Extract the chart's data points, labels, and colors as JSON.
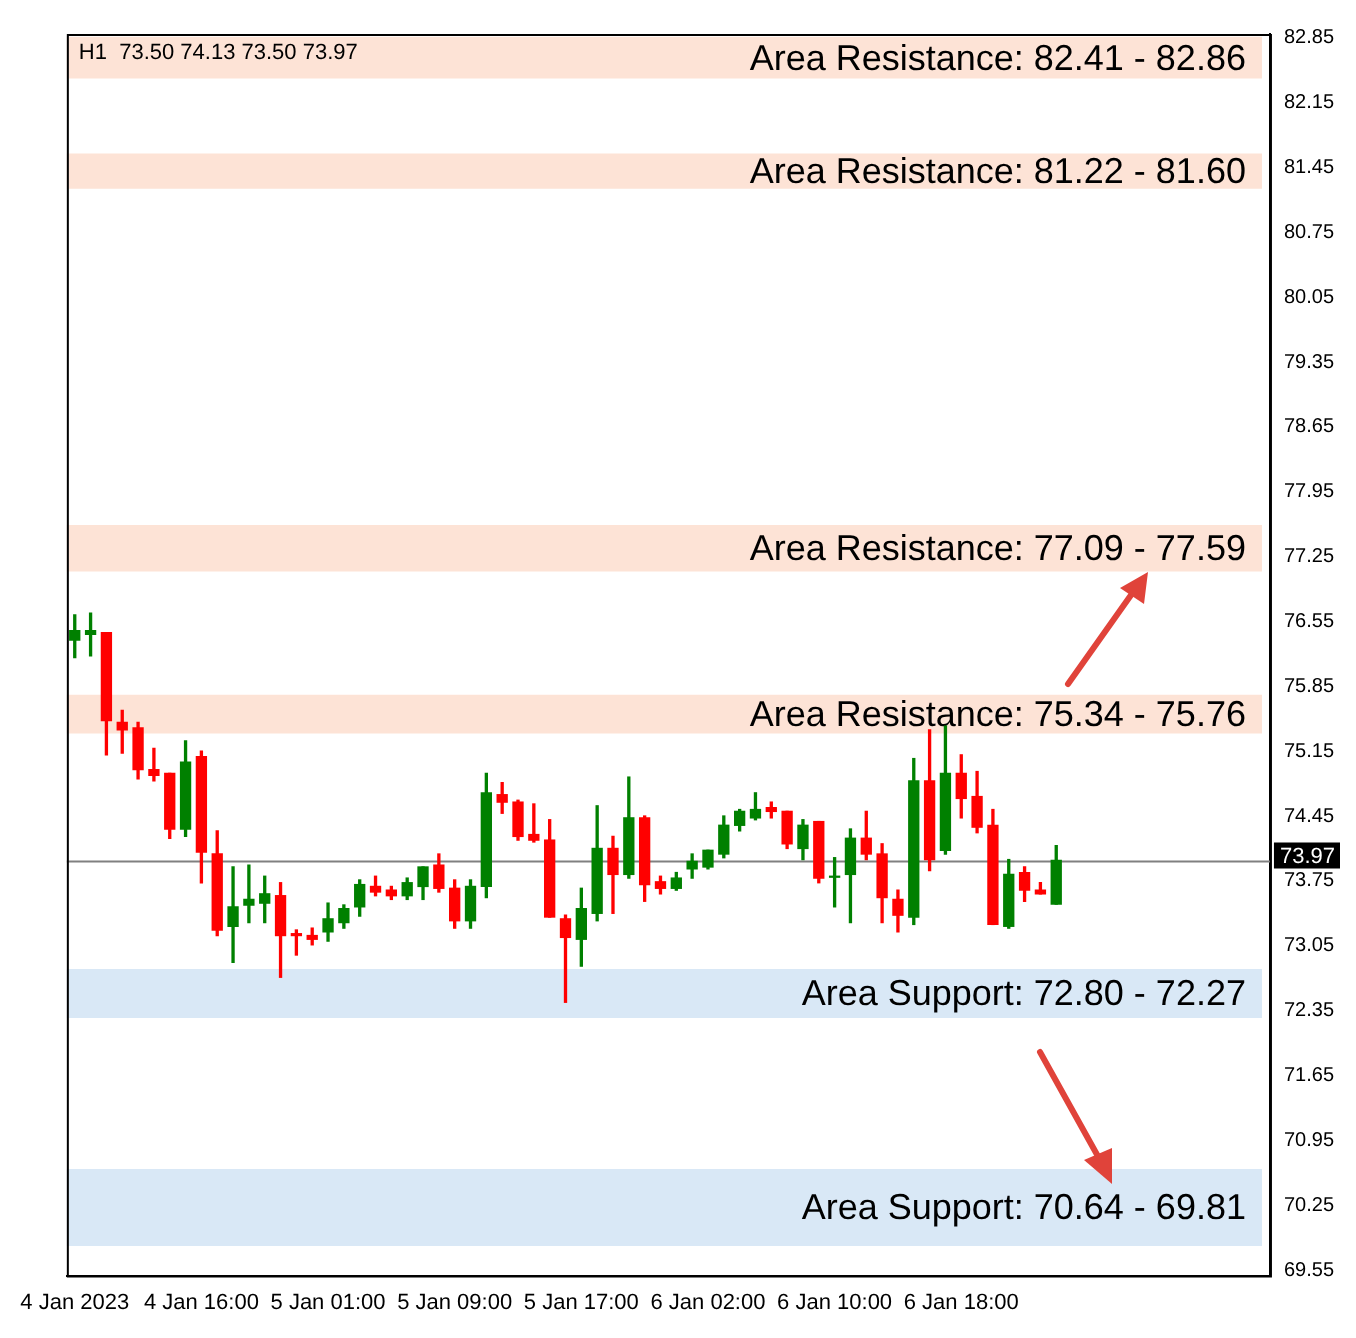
{
  "chart_data": {
    "type": "candlestick",
    "title": "H1  73.50 74.13 73.50 73.97",
    "categories": [
      "4 Jan 2023",
      null,
      null,
      null,
      null,
      null,
      null,
      null,
      "4 Jan 16:00",
      null,
      null,
      null,
      null,
      null,
      null,
      null,
      "5 Jan 01:00",
      null,
      null,
      null,
      null,
      null,
      null,
      null,
      "5 Jan 09:00",
      null,
      null,
      null,
      null,
      null,
      null,
      null,
      "5 Jan 17:00",
      null,
      null,
      null,
      null,
      null,
      null,
      null,
      "6 Jan 02:00",
      null,
      null,
      null,
      null,
      null,
      null,
      null,
      "6 Jan 10:00",
      null,
      null,
      null,
      null,
      null,
      null,
      null,
      "6 Jan 18:00",
      null,
      null,
      null,
      null,
      null,
      null,
      null,
      null,
      null,
      null,
      null,
      null,
      null,
      null,
      null,
      null,
      null,
      null,
      null
    ],
    "ohlc": [
      [
        76.35,
        76.62,
        76.16,
        76.45
      ],
      [
        76.41,
        76.64,
        76.18,
        76.45
      ],
      [
        76.43,
        76.43,
        75.11,
        75.48
      ],
      [
        75.46,
        75.59,
        75.13,
        75.38
      ],
      [
        75.4,
        75.46,
        74.85,
        74.95
      ],
      [
        74.95,
        75.18,
        74.83,
        74.89
      ],
      [
        74.91,
        74.91,
        74.21,
        74.31
      ],
      [
        74.31,
        75.26,
        74.23,
        75.03
      ],
      [
        75.09,
        75.15,
        73.73,
        74.06
      ],
      [
        74.04,
        74.29,
        73.16,
        73.22
      ],
      [
        73.26,
        73.9,
        72.87,
        73.47
      ],
      [
        73.49,
        73.92,
        73.3,
        73.55
      ],
      [
        73.51,
        73.8,
        73.3,
        73.61
      ],
      [
        73.59,
        73.73,
        72.71,
        73.16
      ],
      [
        73.18,
        73.22,
        72.95,
        73.16
      ],
      [
        73.16,
        73.24,
        73.06,
        73.12
      ],
      [
        73.2,
        73.51,
        73.1,
        73.34
      ],
      [
        73.3,
        73.49,
        73.24,
        73.45
      ],
      [
        73.47,
        73.76,
        73.37,
        73.71
      ],
      [
        73.69,
        73.8,
        73.59,
        73.63
      ],
      [
        73.65,
        73.69,
        73.55,
        73.59
      ],
      [
        73.59,
        73.78,
        73.55,
        73.73
      ],
      [
        73.69,
        73.9,
        73.55,
        73.9
      ],
      [
        73.92,
        74.04,
        73.63,
        73.67
      ],
      [
        73.67,
        73.76,
        73.24,
        73.32
      ],
      [
        73.32,
        73.76,
        73.24,
        73.69
      ],
      [
        73.69,
        74.91,
        73.57,
        74.7
      ],
      [
        74.68,
        74.81,
        74.48,
        74.6
      ],
      [
        74.6,
        74.62,
        74.19,
        74.23
      ],
      [
        74.25,
        74.58,
        74.17,
        74.19
      ],
      [
        74.19,
        74.41,
        73.36,
        73.36
      ],
      [
        73.34,
        73.38,
        72.44,
        73.14
      ],
      [
        73.12,
        73.67,
        72.83,
        73.45
      ],
      [
        73.4,
        74.56,
        73.32,
        74.1
      ],
      [
        74.1,
        74.23,
        73.4,
        73.82
      ],
      [
        73.82,
        74.87,
        73.78,
        74.43
      ],
      [
        74.43,
        74.45,
        73.53,
        73.71
      ],
      [
        73.74,
        73.8,
        73.61,
        73.67
      ],
      [
        73.67,
        73.84,
        73.65,
        73.78
      ],
      [
        73.88,
        74.04,
        73.78,
        73.96
      ],
      [
        73.9,
        74.08,
        73.88,
        74.08
      ],
      [
        74.04,
        74.45,
        74.0,
        74.35
      ],
      [
        74.35,
        74.52,
        74.29,
        74.5
      ],
      [
        74.43,
        74.7,
        74.41,
        74.52
      ],
      [
        74.54,
        74.6,
        74.43,
        74.5
      ],
      [
        74.5,
        74.5,
        74.1,
        74.15
      ],
      [
        74.1,
        74.41,
        73.98,
        74.35
      ],
      [
        74.39,
        74.39,
        73.73,
        73.78
      ],
      [
        73.79,
        74.0,
        73.47,
        73.8
      ],
      [
        73.82,
        74.31,
        73.3,
        74.21
      ],
      [
        74.21,
        74.5,
        73.98,
        74.04
      ],
      [
        74.04,
        74.15,
        73.3,
        73.57
      ],
      [
        73.55,
        73.65,
        73.2,
        73.38
      ],
      [
        73.36,
        75.07,
        73.28,
        74.83
      ],
      [
        74.83,
        75.38,
        73.86,
        73.98
      ],
      [
        74.08,
        75.42,
        74.04,
        74.91
      ],
      [
        74.91,
        75.11,
        74.43,
        74.64
      ],
      [
        74.66,
        74.93,
        74.27,
        74.33
      ],
      [
        74.35,
        74.52,
        73.28,
        73.28
      ],
      [
        73.26,
        73.98,
        73.24,
        73.82
      ],
      [
        73.84,
        73.9,
        73.53,
        73.65
      ],
      [
        73.65,
        73.73,
        73.61,
        73.61
      ],
      [
        73.5,
        74.13,
        73.5,
        73.97
      ],
      null,
      null,
      null,
      null,
      null,
      null,
      null,
      null,
      null,
      null,
      null,
      null,
      null
    ],
    "colors": [
      "#008000",
      "#008000",
      "#ff0000",
      "#ff0000",
      "#ff0000",
      "#ff0000",
      "#ff0000",
      "#008000",
      "#ff0000",
      "#ff0000",
      "#008000",
      "#008000",
      "#008000",
      "#ff0000",
      "#ff0000",
      "#ff0000",
      "#008000",
      "#008000",
      "#008000",
      "#ff0000",
      "#ff0000",
      "#008000",
      "#008000",
      "#ff0000",
      "#ff0000",
      "#008000",
      "#008000",
      "#ff0000",
      "#ff0000",
      "#ff0000",
      "#ff0000",
      "#ff0000",
      "#008000",
      "#008000",
      "#ff0000",
      "#008000",
      "#ff0000",
      "#ff0000",
      "#008000",
      "#008000",
      "#008000",
      "#008000",
      "#008000",
      "#008000",
      "#ff0000",
      "#ff0000",
      "#008000",
      "#ff0000",
      "#008000",
      "#008000",
      "#ff0000",
      "#ff0000",
      "#ff0000",
      "#008000",
      "#ff0000",
      "#008000",
      "#ff0000",
      "#ff0000",
      "#ff0000",
      "#008000",
      "#ff0000",
      "#ff0000",
      "#008000",
      null,
      null,
      null,
      null,
      null,
      null,
      null,
      null,
      null,
      null,
      null,
      null,
      null
    ],
    "ylim": [
      69.49,
      82.89
    ],
    "yticks": [
      69.55,
      70.25,
      70.95,
      71.65,
      72.35,
      73.05,
      73.75,
      74.45,
      75.15,
      75.85,
      76.55,
      77.25,
      77.95,
      78.65,
      79.35,
      80.05,
      80.75,
      81.45,
      82.15,
      82.85
    ],
    "bands": [
      {
        "axis": "y",
        "from": 82.41,
        "to": 82.86,
        "label": "Area Resistance: 82.41 - 82.86",
        "color": "#fde3d6"
      },
      {
        "axis": "y",
        "from": 81.22,
        "to": 81.6,
        "label": "Area Resistance: 81.22 - 81.60",
        "color": "#fde3d6"
      },
      {
        "axis": "y",
        "from": 77.09,
        "to": 77.59,
        "label": "Area Resistance: 77.09 - 77.59",
        "color": "#fde3d6"
      },
      {
        "axis": "y",
        "from": 75.34,
        "to": 75.76,
        "label": "Area Resistance: 75.34 - 75.76",
        "color": "#fde3d6"
      },
      {
        "axis": "y",
        "from": 72.8,
        "to": 72.27,
        "label": "Area Support: 72.80 - 72.27",
        "color": "#d9e8f6"
      },
      {
        "axis": "y",
        "from": 70.64,
        "to": 69.81,
        "label": "Area Support: 70.64 - 69.81",
        "color": "#d9e8f6"
      }
    ],
    "ref_lines": [
      {
        "axis": "y",
        "value": 73.97,
        "label": "73.97",
        "color": "#808080"
      }
    ],
    "grid": false,
    "legend": false
  }
}
